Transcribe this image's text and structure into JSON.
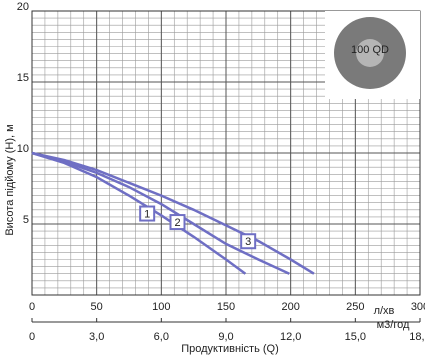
{
  "chart_data": {
    "type": "line",
    "ylabel": "Висота підйому (Н), м",
    "xlabel": "Продуктивність (Q)",
    "x_unit": "л/хв",
    "x2_unit": "м3/год",
    "annotation": "100 QD",
    "xlim": [
      0,
      300
    ],
    "xticks": [
      0,
      50,
      100,
      150,
      200,
      250,
      300
    ],
    "x2lim": [
      0,
      18
    ],
    "x2ticks": [
      0,
      {
        "value": 3,
        "label": "3,0"
      },
      {
        "value": 6,
        "label": "6,0"
      },
      {
        "value": 9,
        "label": "9,0"
      },
      {
        "value": 12,
        "label": "12,0"
      },
      {
        "value": 15,
        "label": "15,0"
      },
      {
        "value": 18,
        "label": "18,0"
      }
    ],
    "ylim": [
      0,
      20
    ],
    "yticks": [
      5,
      10,
      15,
      20
    ],
    "grid": true,
    "series": [
      {
        "name": "1",
        "color": "#6f6fc4",
        "x": [
          0,
          25,
          50,
          75,
          100,
          125,
          150,
          165
        ],
        "values": [
          10,
          9.3,
          8.3,
          7.0,
          5.6,
          4.1,
          2.5,
          1.5
        ]
      },
      {
        "name": "2",
        "color": "#6f6fc4",
        "x": [
          0,
          25,
          50,
          75,
          100,
          125,
          150,
          175,
          199
        ],
        "values": [
          10,
          9.4,
          8.6,
          7.6,
          6.4,
          5.0,
          3.6,
          2.5,
          1.5
        ]
      },
      {
        "name": "3",
        "color": "#6f6fc4",
        "x": [
          0,
          25,
          50,
          75,
          100,
          125,
          150,
          175,
          200,
          218
        ],
        "values": [
          10,
          9.5,
          8.8,
          7.9,
          7.0,
          6.0,
          4.9,
          3.8,
          2.5,
          1.5
        ]
      }
    ]
  }
}
